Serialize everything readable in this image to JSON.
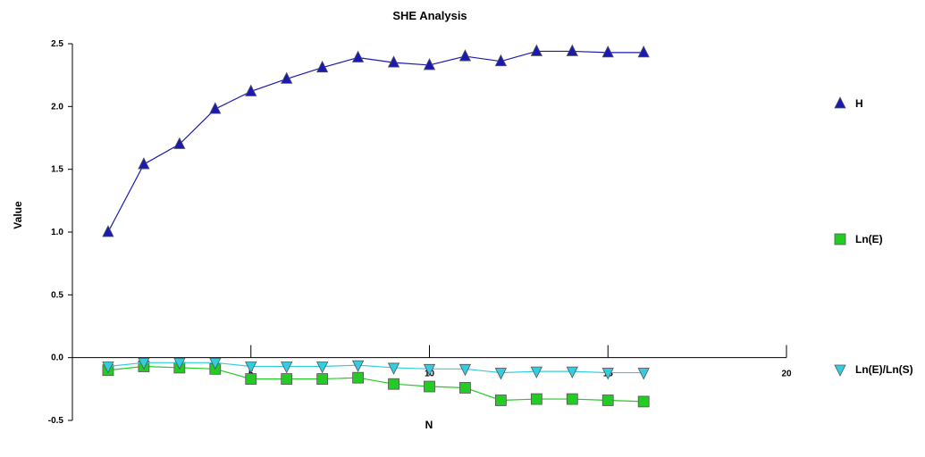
{
  "chart_data": {
    "type": "line",
    "title": "SHE Analysis",
    "xlabel": "N",
    "ylabel": "Value",
    "xlim": [
      0,
      20
    ],
    "ylim": [
      -0.5,
      2.5
    ],
    "x_ticks": [
      5,
      10,
      15,
      20
    ],
    "x_tick_labels": [
      "5",
      "10",
      "15",
      "20"
    ],
    "y_ticks": [
      -0.5,
      0.0,
      0.5,
      1.0,
      1.5,
      2.0,
      2.5
    ],
    "y_tick_labels": [
      "-0.5",
      "0.0",
      "0.5",
      "1.0",
      "1.5",
      "2.0",
      "2.5"
    ],
    "grid": false,
    "legend_position": "right",
    "x": [
      1,
      2,
      3,
      4,
      5,
      6,
      7,
      8,
      9,
      10,
      11,
      12,
      13,
      14,
      15,
      16
    ],
    "series": [
      {
        "name": "H",
        "marker": "triangle-up",
        "color": "#1a1ab0",
        "values": [
          1.0,
          1.54,
          1.7,
          1.98,
          2.12,
          2.22,
          2.31,
          2.39,
          2.35,
          2.33,
          2.4,
          2.36,
          2.44,
          2.44,
          2.43,
          2.43
        ]
      },
      {
        "name": "Ln(E)",
        "marker": "square",
        "color": "#22cc22",
        "values": [
          -0.1,
          -0.07,
          -0.08,
          -0.09,
          -0.17,
          -0.17,
          -0.17,
          -0.16,
          -0.21,
          -0.23,
          -0.24,
          -0.34,
          -0.33,
          -0.33,
          -0.34,
          -0.35
        ]
      },
      {
        "name": "Ln(E)/Ln(S)",
        "marker": "triangle-down",
        "color": "#33cce0",
        "values": [
          -0.07,
          -0.04,
          -0.04,
          -0.04,
          -0.07,
          -0.07,
          -0.07,
          -0.06,
          -0.08,
          -0.09,
          -0.09,
          -0.12,
          -0.11,
          -0.11,
          -0.12,
          -0.12
        ]
      }
    ]
  }
}
